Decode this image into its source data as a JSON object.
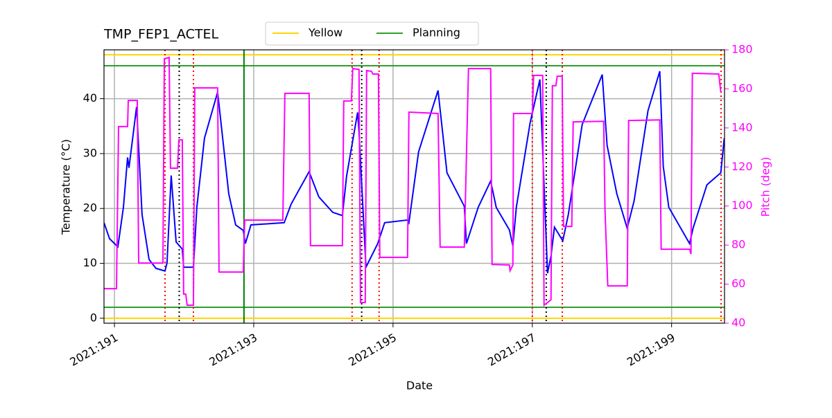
{
  "chart_data": {
    "type": "line",
    "title": "TMP_FEP1_ACTEL",
    "xlabel": "Date",
    "ylabel": "Temperature (°C)",
    "y2label": "Pitch (deg)",
    "xlim": [
      190.85,
      199.76
    ],
    "xticks": [
      {
        "value": 191,
        "label": "2021:191"
      },
      {
        "value": 193,
        "label": "2021:193"
      },
      {
        "value": 195,
        "label": "2021:195"
      },
      {
        "value": 197,
        "label": "2021:197"
      },
      {
        "value": 199,
        "label": "2021:199"
      }
    ],
    "ylim": [
      -0.9,
      48.9
    ],
    "yticks": [
      0,
      10,
      20,
      30,
      40
    ],
    "y2lim": [
      40,
      180
    ],
    "y2ticks": [
      40,
      60,
      80,
      100,
      120,
      140,
      160,
      180
    ],
    "y2color": "#ff00ff",
    "grid": true,
    "legend": "upper center",
    "series": [
      {
        "color": "#0000ff",
        "x": [
          190.85,
          190.93,
          191.049,
          191.129,
          191.188,
          191.208,
          191.318,
          191.397,
          191.497,
          191.596,
          191.726,
          191.755,
          191.815,
          191.885,
          191.974,
          191.994,
          192.134,
          192.183,
          192.293,
          192.482,
          192.641,
          192.741,
          192.85,
          192.88,
          192.96,
          193.437,
          193.537,
          193.795,
          193.935,
          194.134,
          194.273,
          194.333,
          194.492,
          194.512,
          194.611,
          194.78,
          194.88,
          195.208,
          195.228,
          195.367,
          195.646,
          195.775,
          196.024,
          196.054,
          196.223,
          196.402,
          196.482,
          196.671,
          196.721,
          196.77,
          196.969,
          197.109,
          197.218,
          197.268,
          197.318,
          197.437,
          197.517,
          197.716,
          198.004,
          198.074,
          198.213,
          198.362,
          198.462,
          198.661,
          198.83,
          198.88,
          198.96,
          199.258,
          199.308,
          199.507,
          199.706,
          199.756
        ],
        "values": [
          17.4,
          14.5,
          13.0,
          20.2,
          29.3,
          27.4,
          38.5,
          18.9,
          10.7,
          9.1,
          8.6,
          10.1,
          26.0,
          13.9,
          12.6,
          9.3,
          9.3,
          20.2,
          32.8,
          41.2,
          22.7,
          17.0,
          16.0,
          13.6,
          17.0,
          17.4,
          20.8,
          26.7,
          22.1,
          19.3,
          18.7,
          25.9,
          37.5,
          34.0,
          9.3,
          13.6,
          17.4,
          17.9,
          17.4,
          30.3,
          41.5,
          26.5,
          20.4,
          13.6,
          20.2,
          25.0,
          20.2,
          16.1,
          13.2,
          20.2,
          35.6,
          43.5,
          8.2,
          11.3,
          16.6,
          14.1,
          18.9,
          35.3,
          44.4,
          31.5,
          22.7,
          16.4,
          21.4,
          37.8,
          45.0,
          27.7,
          20.2,
          13.6,
          16.4,
          24.3,
          26.5,
          32.8
        ]
      },
      {
        "color": "#ff00ff",
        "axis": "y2",
        "x": [
          190.85,
          191.029,
          191.059,
          191.188,
          191.198,
          191.328,
          191.348,
          191.696,
          191.716,
          191.785,
          191.805,
          191.905,
          191.925,
          191.974,
          191.994,
          192.024,
          192.044,
          192.134,
          192.153,
          192.482,
          192.502,
          192.85,
          192.87,
          193.417,
          193.447,
          193.795,
          193.815,
          194.273,
          194.293,
          194.402,
          194.422,
          194.512,
          194.532,
          194.601,
          194.621,
          194.691,
          194.711,
          194.79,
          194.81,
          195.208,
          195.228,
          195.646,
          195.676,
          196.024,
          196.084,
          196.402,
          196.422,
          196.671,
          196.681,
          196.721,
          196.731,
          196.999,
          197.019,
          197.149,
          197.169,
          197.268,
          197.288,
          197.338,
          197.358,
          197.428,
          197.448,
          197.567,
          197.587,
          198.025,
          198.044,
          198.084,
          198.363,
          198.383,
          198.83,
          198.85,
          199.258,
          199.278,
          199.298,
          199.677,
          199.706
        ],
        "values": [
          57.7,
          57.7,
          140.7,
          140.7,
          154.1,
          154.1,
          70.8,
          70.8,
          175.4,
          176.1,
          119.4,
          119.4,
          133.9,
          133.9,
          54.9,
          54.9,
          49.2,
          49.2,
          160.5,
          160.5,
          66.2,
          66.2,
          92.8,
          92.8,
          157.7,
          157.7,
          79.7,
          79.7,
          153.8,
          153.8,
          170.4,
          170.0,
          50.6,
          50.6,
          169.4,
          169.0,
          167.6,
          167.6,
          73.7,
          73.7,
          148.1,
          147.4,
          79.0,
          79.0,
          170.4,
          170.4,
          70.1,
          69.8,
          66.9,
          69.8,
          147.4,
          147.4,
          166.9,
          166.9,
          49.2,
          52.0,
          161.6,
          161.6,
          166.5,
          166.5,
          89.6,
          89.6,
          143.1,
          143.4,
          98.1,
          59.1,
          59.1,
          143.8,
          144.1,
          77.9,
          77.9,
          75.4,
          168.0,
          167.6,
          158.4
        ]
      }
    ],
    "hlines": [
      {
        "name": "Yellow",
        "color": "#ffd700",
        "values": [
          48,
          0
        ]
      },
      {
        "name": "Planning",
        "color": "#2ca02c",
        "values": [
          46,
          2
        ]
      }
    ],
    "vlines": [
      {
        "color": "#ff0000",
        "style": "dotted",
        "x": [
          191.726,
          192.134,
          194.412,
          194.8,
          197.0,
          197.43,
          199.71
        ]
      },
      {
        "color": "#000000",
        "style": "dotted",
        "x": [
          191.93,
          194.55,
          197.2
        ]
      },
      {
        "color": "#008000",
        "style": "solid",
        "x": [
          192.86
        ]
      }
    ]
  }
}
